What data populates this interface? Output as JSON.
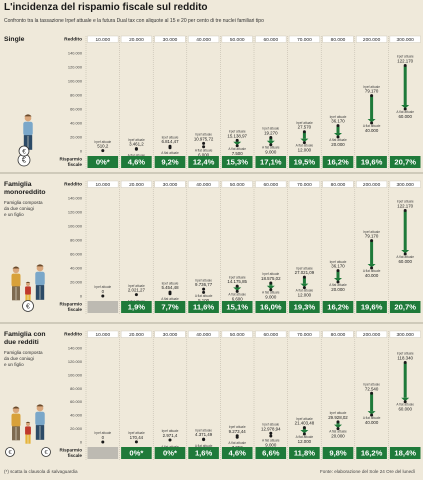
{
  "title": "L'incidenza del rispamio fiscale sul reddito",
  "subtitle": "Confronto tra la tassazione Irpef attuale e la futura Dual tax con aliquote al 15 e 20 per cento di tre nuclei familiari tipo",
  "footnote": "(*) scatta la clausola di salvaguardia",
  "source": "Fonte: elaborazione del Sole 24 Ore del lunedì",
  "labels": {
    "reddito": "Reddito",
    "irpef": "Irpef attuale",
    "flat": "A flat attuale",
    "risparmio_line1": "Risparmio",
    "risparmio_line2": "fiscale"
  },
  "colors": {
    "green": "#1f7a3a",
    "bg": "#efe9da",
    "header": "#ffffff",
    "light_green": "#cfe2b5",
    "grey_cell": "#bdbab2",
    "text": "#222222"
  },
  "chart_data": [
    {
      "type": "bar",
      "title": "Single",
      "desc": [],
      "y_ticks": [
        "140.000",
        "120.000",
        "100.000",
        "80.000",
        "60.000",
        "40.000",
        "20.000",
        "0"
      ],
      "ylim": [
        0,
        140000
      ],
      "categories": [
        "10.000",
        "20.000",
        "30.000",
        "40.000",
        "50.000",
        "60.000",
        "70.000",
        "80.000",
        "200.000",
        "300.000"
      ],
      "irpef": [
        510.2,
        3461.2,
        6814.47,
        10975.72,
        15138.97,
        19270,
        27570,
        36170,
        79170,
        122170
      ],
      "irpef_labels": [
        "510,2",
        "3.461,2",
        "6.814,47",
        "10.975,72",
        "15.138,97",
        "19.270",
        "27.570",
        "36.170",
        "79.170",
        "122.170"
      ],
      "flat": [
        510.2,
        2550,
        4650,
        6000,
        7500,
        9000,
        12000,
        20000,
        40000,
        60000
      ],
      "flat_labels": [
        "510,2",
        "2.550",
        "4.650",
        "6.000",
        "7.500",
        "9.000",
        "12.000",
        "20.000",
        "40.000",
        "60.000"
      ],
      "saving": [
        "0%*",
        "4,6%",
        "9,2%",
        "12,4%",
        "15,3%",
        "17,1%",
        "19,5%",
        "16,2%",
        "19,6%",
        "20,7%"
      ]
    },
    {
      "type": "bar",
      "title": "Famiglia monoreddito",
      "desc": [
        "Famiglia composta",
        "da due coniugi",
        "e un figlio"
      ],
      "y_ticks": [
        "140.000",
        "120.000",
        "100.000",
        "80.000",
        "60.000",
        "40.000",
        "20.000",
        "0"
      ],
      "ylim": [
        0,
        140000
      ],
      "categories": [
        "10.000",
        "20.000",
        "30.000",
        "40.000",
        "50.000",
        "60.000",
        "70.000",
        "80.000",
        "200.000",
        "300.000"
      ],
      "irpef": [
        0,
        2021.27,
        5454.48,
        9736.77,
        14175.85,
        18575.02,
        27021.09,
        36170,
        79170,
        122170
      ],
      "irpef_labels": [
        "0",
        "2.021,27",
        "5.454,48",
        "9.736,77",
        "14.175,85",
        "18.575,02",
        "27.021,09",
        "36.170",
        "79.170",
        "122.170"
      ],
      "flat": [
        0,
        1650,
        3150,
        5100,
        6600,
        9000,
        12000,
        20000,
        40000,
        60000
      ],
      "flat_labels": [
        "0",
        "1.650",
        "3.150",
        "5.100",
        "6.600",
        "9.000",
        "12.000",
        "20.000",
        "40.000",
        "60.000"
      ],
      "saving": [
        "",
        "1,9%",
        "7,7%",
        "11,6%",
        "15,1%",
        "16,0%",
        "19,3%",
        "16,2%",
        "19,6%",
        "20,7%"
      ]
    },
    {
      "type": "bar",
      "title": "Famiglia con due redditi",
      "desc": [
        "Famiglia composta",
        "da due coniugi",
        "e un figlio"
      ],
      "y_ticks": [
        "140.000",
        "120.000",
        "100.000",
        "80.000",
        "60.000",
        "40.000",
        "20.000",
        "0"
      ],
      "ylim": [
        0,
        140000
      ],
      "categories": [
        "10.000",
        "20.000",
        "30.000",
        "40.000",
        "50.000",
        "60.000",
        "70.000",
        "80.000",
        "200.000",
        "300.000"
      ],
      "irpef": [
        0,
        170.44,
        2971.4,
        4371.49,
        9273.44,
        12978.94,
        21403.48,
        29928.02,
        72540,
        118340
      ],
      "irpef_labels": [
        "0",
        "170,44",
        "2.971,4",
        "4.371,49",
        "9.273,44",
        "12.978,94",
        "21.403,48",
        "29.928,02",
        "72.540",
        "118.340"
      ],
      "flat": [
        0,
        170.44,
        2971.4,
        3550,
        7050,
        9000,
        12000,
        20000,
        40000,
        60000
      ],
      "flat_labels": [
        "0",
        "170,44",
        "2.971,4",
        "3.550",
        "7.050",
        "9.000",
        "12.000",
        "20.000",
        "40.000",
        "60.000"
      ],
      "saving": [
        "",
        "0%*",
        "0%*",
        "1,6%",
        "4,6%",
        "6,6%",
        "11,8%",
        "9,8%",
        "16,2%",
        "18,4%"
      ]
    }
  ]
}
